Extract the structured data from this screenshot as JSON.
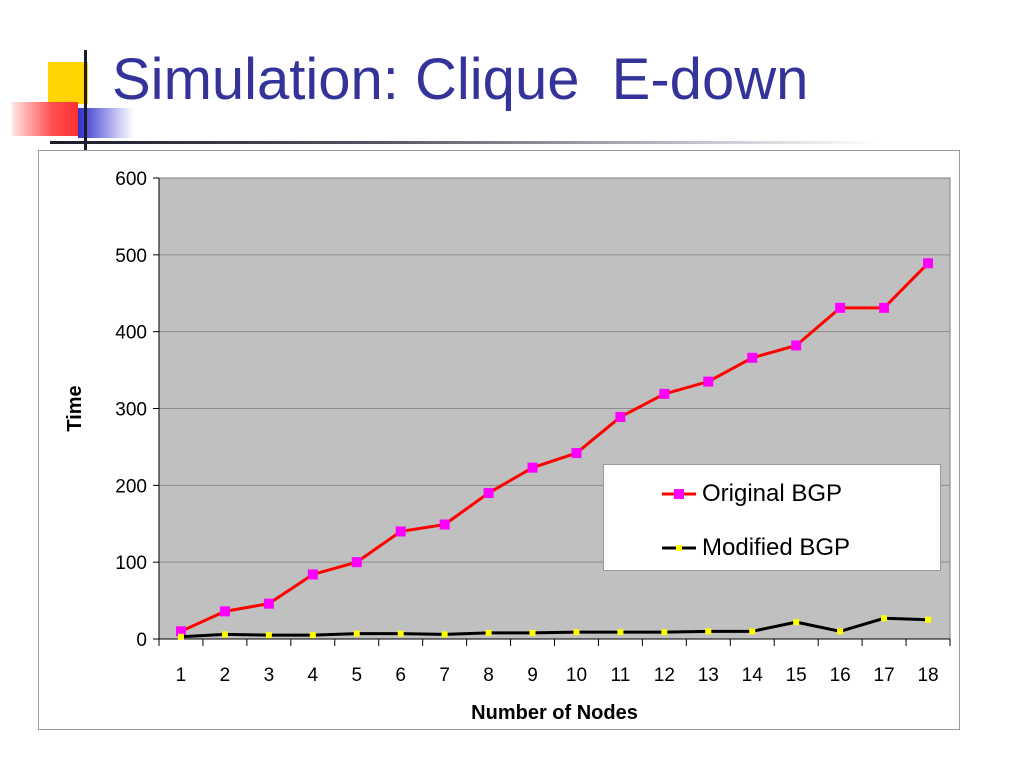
{
  "slide": {
    "title": "Simulation: Clique  E-down"
  },
  "colors": {
    "title": "#333399",
    "plot_background": "#c0c0c0",
    "gridline": "#8c8c8c",
    "original_line": "#ff0000",
    "original_marker": "#ff00ff",
    "modified_line": "#000000",
    "modified_marker": "#ffff00"
  },
  "chart_data": {
    "type": "line",
    "xlabel": "Number of Nodes",
    "ylabel": "Time",
    "categories": [
      "1",
      "2",
      "3",
      "4",
      "5",
      "6",
      "7",
      "8",
      "9",
      "10",
      "11",
      "12",
      "13",
      "14",
      "15",
      "16",
      "17",
      "18"
    ],
    "ylim": [
      0,
      600
    ],
    "yticks": [
      "0",
      "100",
      "200",
      "300",
      "400",
      "500",
      "600"
    ],
    "grid": true,
    "legend_position": "right",
    "series": [
      {
        "name": "Original BGP",
        "values": [
          10,
          36,
          46,
          84,
          100,
          140,
          149,
          190,
          223,
          242,
          289,
          319,
          335,
          366,
          382,
          431,
          431,
          489
        ]
      },
      {
        "name": "Modified BGP",
        "values": [
          3,
          6,
          5,
          5,
          7,
          7,
          6,
          8,
          8,
          9,
          9,
          9,
          10,
          10,
          22,
          10,
          27,
          25
        ]
      }
    ]
  }
}
